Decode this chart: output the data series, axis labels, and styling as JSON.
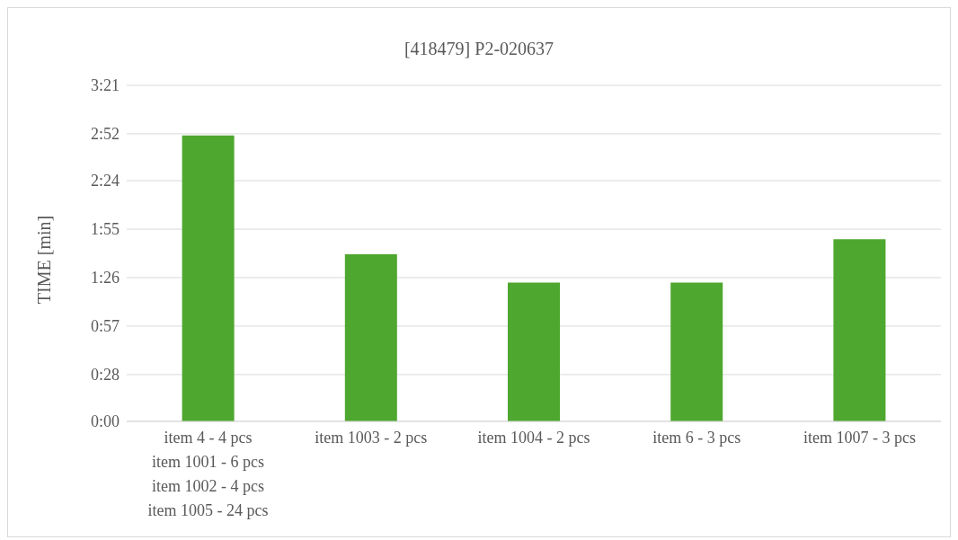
{
  "chart_data": {
    "type": "bar",
    "title": "[418479] P2-020637",
    "ylabel": "TIME [min]",
    "categories": [
      "item 4 - 4 pcs\nitem 1001 - 6 pcs\nitem 1002 - 4 pcs\nitem 1005 - 24 pcs",
      "item 1003 - 2 pcs",
      "item 1004 - 2 pcs",
      "item 6 - 3 pcs",
      "item 1007 - 3 pcs"
    ],
    "values": [
      171,
      100,
      83,
      83,
      109
    ],
    "color": "#4ea72e",
    "ylim": [
      0,
      201
    ],
    "yticks": [
      {
        "value": 0,
        "label": "0:00"
      },
      {
        "value": 28,
        "label": "0:28"
      },
      {
        "value": 57,
        "label": "0:57"
      },
      {
        "value": 86,
        "label": "1:26"
      },
      {
        "value": 115,
        "label": "1:55"
      },
      {
        "value": 144,
        "label": "2:24"
      },
      {
        "value": 172,
        "label": "2:52"
      },
      {
        "value": 201,
        "label": "3:21"
      }
    ],
    "grid": "y"
  }
}
